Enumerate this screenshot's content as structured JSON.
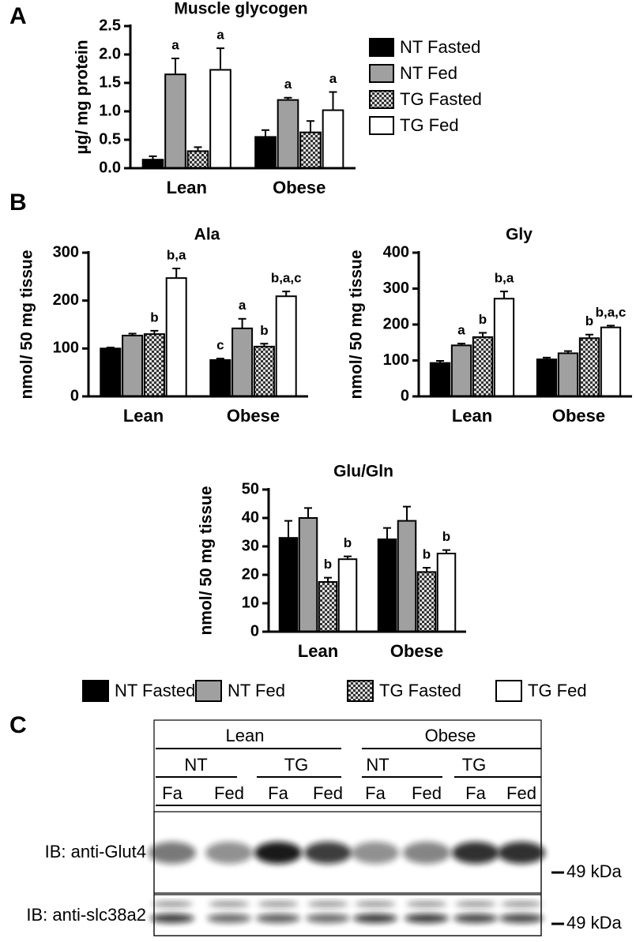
{
  "panels": [
    "A",
    "B",
    "C"
  ],
  "chart_data": [
    {
      "type": "bar",
      "title": "Muscle glycogen",
      "y_label": "µg/ mg protein",
      "categories": [
        "Lean",
        "Obese"
      ],
      "ylim": [
        0,
        2.5
      ],
      "yticks": [
        {
          "value": 0,
          "label": "0.0"
        },
        0.5,
        {
          "value": 1,
          "label": "1.0"
        },
        1.5,
        {
          "value": 2,
          "label": "2.0"
        },
        2.5
      ],
      "legend": "right",
      "series": [
        {
          "name": "NT Fasted",
          "color": "#000000",
          "values": [
            0.15,
            0.55
          ],
          "errors": [
            0.06,
            0.12
          ],
          "letters": [
            null,
            null
          ]
        },
        {
          "name": "NT Fed",
          "color": "#a0a0a0",
          "values": [
            1.65,
            1.2
          ],
          "errors": [
            0.28,
            0.04
          ],
          "letters": [
            "a",
            "a"
          ]
        },
        {
          "name": "TG Fasted",
          "color": "#555555",
          "pattern": "checkerboard",
          "values": [
            0.3,
            0.63
          ],
          "errors": [
            0.07,
            0.2
          ],
          "letters": [
            null,
            null
          ]
        },
        {
          "name": "TG Fed",
          "color": "#ffffff",
          "values": [
            1.73,
            1.02
          ],
          "errors": [
            0.38,
            0.32
          ],
          "letters": [
            "a",
            "a"
          ]
        }
      ]
    },
    {
      "type": "bar",
      "title": "Ala",
      "y_label": "nmol/ 50 mg tissue",
      "categories": [
        "Lean",
        "Obese"
      ],
      "ylim": [
        0,
        300
      ],
      "yticks": [
        0,
        100,
        200,
        300
      ],
      "legend": "bottom",
      "series": [
        {
          "name": "NT Fasted",
          "color": "#000000",
          "values": [
            100,
            76
          ],
          "errors": [
            2,
            3
          ],
          "letters": [
            null,
            "c"
          ]
        },
        {
          "name": "NT Fed",
          "color": "#a0a0a0",
          "values": [
            127,
            142
          ],
          "errors": [
            4,
            20
          ],
          "letters": [
            null,
            "a"
          ]
        },
        {
          "name": "TG Fasted",
          "color": "#555555",
          "pattern": "checkerboard",
          "values": [
            130,
            104
          ],
          "errors": [
            7,
            6
          ],
          "letters": [
            "b",
            "b"
          ]
        },
        {
          "name": "TG Fed",
          "color": "#ffffff",
          "values": [
            247,
            209
          ],
          "errors": [
            20,
            10
          ],
          "letters": [
            "b,a",
            "b,a,c"
          ]
        }
      ]
    },
    {
      "type": "bar",
      "title": "Gly",
      "y_label": "nmol/ 50 mg tissue",
      "categories": [
        "Lean",
        "Obese"
      ],
      "ylim": [
        0,
        400
      ],
      "yticks": [
        0,
        100,
        200,
        300,
        400
      ],
      "series": [
        {
          "name": "NT Fasted",
          "color": "#000000",
          "values": [
            93,
            103
          ],
          "errors": [
            6,
            5
          ],
          "letters": [
            null,
            null
          ]
        },
        {
          "name": "NT Fed",
          "color": "#a0a0a0",
          "values": [
            142,
            120
          ],
          "errors": [
            5,
            6
          ],
          "letters": [
            "a",
            null
          ]
        },
        {
          "name": "TG Fasted",
          "color": "#555555",
          "pattern": "checkerboard",
          "values": [
            165,
            162
          ],
          "errors": [
            12,
            10
          ],
          "letters": [
            "b",
            "b"
          ]
        },
        {
          "name": "TG Fed",
          "color": "#ffffff",
          "values": [
            272,
            192
          ],
          "errors": [
            20,
            5
          ],
          "letters": [
            "b,a",
            "b,a,c"
          ]
        }
      ]
    },
    {
      "type": "bar",
      "title": "Glu/Gln",
      "y_label": "nmol/ 50 mg tissue",
      "categories": [
        "Lean",
        "Obese"
      ],
      "ylim": [
        0,
        50
      ],
      "yticks": [
        0,
        10,
        20,
        30,
        40,
        50
      ],
      "series": [
        {
          "name": "NT Fasted",
          "color": "#000000",
          "values": [
            33,
            32.5
          ],
          "errors": [
            6,
            4
          ],
          "letters": [
            null,
            null
          ]
        },
        {
          "name": "NT Fed",
          "color": "#a0a0a0",
          "values": [
            40,
            39
          ],
          "errors": [
            3.5,
            5
          ],
          "letters": [
            null,
            null
          ]
        },
        {
          "name": "TG Fasted",
          "color": "#555555",
          "pattern": "checkerboard",
          "values": [
            17.5,
            21
          ],
          "errors": [
            1.5,
            1.5
          ],
          "letters": [
            "b",
            "b"
          ]
        },
        {
          "name": "TG Fed",
          "color": "#ffffff",
          "values": [
            25.5,
            27.5
          ],
          "errors": [
            1,
            1.2
          ],
          "letters": [
            "b",
            "b"
          ]
        }
      ]
    }
  ],
  "blot": {
    "group_labels": [
      "Lean",
      "Obese"
    ],
    "genotype_labels": [
      "NT",
      "TG",
      "NT",
      "TG"
    ],
    "lane_labels": [
      "Fa",
      "Fed",
      "Fa",
      "Fed",
      "Fa",
      "Fed",
      "Fa",
      "Fed"
    ],
    "rows": [
      {
        "label": "IB: anti-Glut4",
        "marker": "49 kDa"
      },
      {
        "label": "IB: anti-slc38a2",
        "marker": "49 kDa"
      }
    ]
  }
}
